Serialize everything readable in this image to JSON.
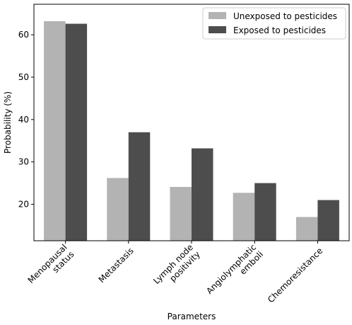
{
  "chart_data": {
    "type": "bar",
    "title": "",
    "xlabel": "Parameters",
    "ylabel": "Probability (%)",
    "ylim": [
      11.4,
      67.2
    ],
    "yticks": [
      20,
      30,
      40,
      50,
      60
    ],
    "categories": [
      [
        "Menopausal",
        "status"
      ],
      [
        "Metastasis"
      ],
      [
        "Lymph node",
        "positivity"
      ],
      [
        "Angiolymphatic",
        "emboli"
      ],
      [
        "Chemoresistance"
      ]
    ],
    "series": [
      {
        "name": "Unexposed to pesticides",
        "color": "#b3b3b3",
        "values": [
          63.2,
          26.2,
          24.1,
          22.7,
          17.0
        ]
      },
      {
        "name": "Exposed to pesticides",
        "color": "#4d4d4d",
        "values": [
          62.6,
          37.0,
          33.2,
          25.0,
          21.0
        ]
      }
    ],
    "legend": "top-right",
    "grid": false
  }
}
